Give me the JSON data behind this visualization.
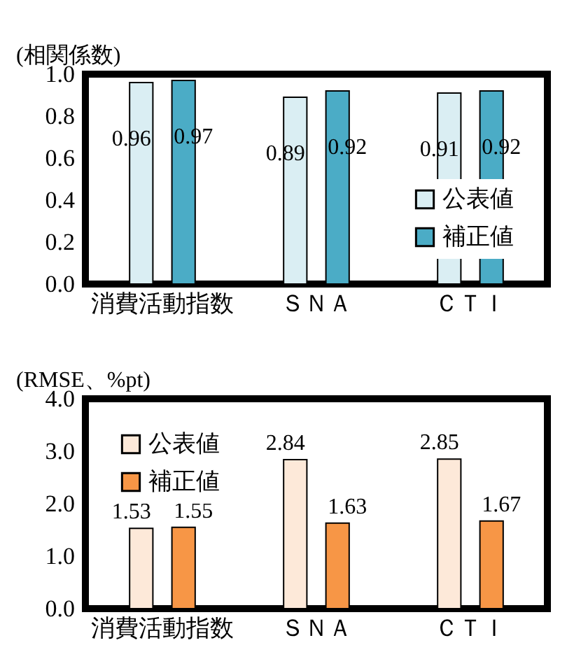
{
  "chart_data": [
    {
      "type": "bar",
      "ylabel": "(相関係数)",
      "categories": [
        "消費活動指数",
        "ＳＮＡ",
        "ＣＴＩ"
      ],
      "series": [
        {
          "name": "公表値",
          "color": "#daeef3",
          "values": [
            0.96,
            0.89,
            0.91
          ]
        },
        {
          "name": "補正値",
          "color": "#4bacc6",
          "values": [
            0.97,
            0.92,
            0.92
          ]
        }
      ],
      "ylim": [
        0,
        1
      ],
      "yticks": [
        {
          "value": 0,
          "label": "0.0"
        },
        {
          "value": 0.2,
          "label": "0.2"
        },
        {
          "value": 0.4,
          "label": "0.4"
        },
        {
          "value": 0.6,
          "label": "0.6"
        },
        {
          "value": 0.8,
          "label": "0.8"
        },
        {
          "value": 1,
          "label": "1.0"
        }
      ],
      "data_labels": true,
      "legend": "bottom right"
    },
    {
      "type": "bar",
      "ylabel": "(RMSE、%pt)",
      "categories": [
        "消費活動指数",
        "ＳＮＡ",
        "ＣＴＩ"
      ],
      "series": [
        {
          "name": "公表値",
          "color": "#fde9d9",
          "values": [
            1.53,
            2.84,
            2.85
          ]
        },
        {
          "name": "補正値",
          "color": "#f79646",
          "values": [
            1.55,
            1.63,
            1.67
          ]
        }
      ],
      "ylim": [
        0,
        4
      ],
      "yticks": [
        {
          "value": 0,
          "label": "0.0"
        },
        {
          "value": 1,
          "label": "1.0"
        },
        {
          "value": 2,
          "label": "2.0"
        },
        {
          "value": 3,
          "label": "3.0"
        },
        {
          "value": 4,
          "label": "4.0"
        }
      ],
      "data_labels": true,
      "legend": "top left"
    }
  ]
}
